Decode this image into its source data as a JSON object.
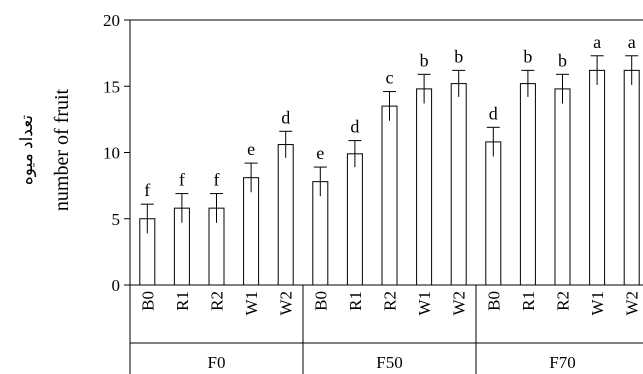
{
  "chart_data": {
    "type": "bar",
    "ylabel_fa": "تعداد میوه",
    "ylabel": "number of fruit",
    "ylim": [
      0,
      20
    ],
    "yticks": [
      0,
      5,
      10,
      15,
      20
    ],
    "grid": false,
    "groups": [
      {
        "label": "F0",
        "categories": [
          "B0",
          "R1",
          "R2",
          "W1",
          "W2"
        ]
      },
      {
        "label": "F50",
        "categories": [
          "B0",
          "R1",
          "R2",
          "W1",
          "W2"
        ]
      },
      {
        "label": "F70",
        "categories": [
          "B0",
          "R1",
          "R2",
          "W1",
          "W2"
        ]
      }
    ],
    "values": [
      5.0,
      5.8,
      5.8,
      8.1,
      10.6,
      7.8,
      9.9,
      13.5,
      14.8,
      15.2,
      10.8,
      15.2,
      14.8,
      16.2,
      16.2
    ],
    "errors": [
      1.1,
      1.1,
      1.1,
      1.1,
      1.0,
      1.1,
      1.0,
      1.1,
      1.1,
      1.0,
      1.1,
      1.0,
      1.1,
      1.1,
      1.1
    ],
    "letters": [
      "f",
      "f",
      "f",
      "e",
      "d",
      "e",
      "d",
      "c",
      "b",
      "b",
      "d",
      "b",
      "b",
      "a",
      "a"
    ]
  }
}
